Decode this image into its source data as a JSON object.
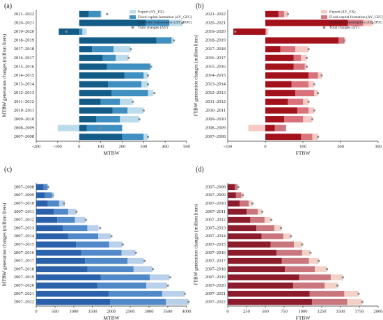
{
  "chart_data": [
    {
      "type": "bar",
      "label": "(a)",
      "xlabel": "MTBW",
      "ylabel": "MTBW generation changes (million liters)",
      "categories": [
        "2021–2022",
        "2020–2021",
        "2019–2020",
        "2018–2019",
        "2017–2018",
        "2016–2017",
        "2015–2016",
        "2014–2015",
        "2013–2014",
        "2012–2013",
        "2011–2012",
        "2010–2011",
        "2009–2010",
        "2008–2009",
        "2007–2008"
      ],
      "series": [
        {
          "name": "Export (ΔY_EX)",
          "color": "#bcdcec",
          "values": [
            5,
            60,
            20,
            10,
            80,
            60,
            5,
            20,
            30,
            25,
            60,
            75,
            90,
            -100,
            20
          ]
        },
        {
          "name": "Fixed capital formation (ΔY_GFC)",
          "color": "#3f8fc0",
          "values": [
            55,
            110,
            15,
            70,
            100,
            60,
            200,
            90,
            155,
            170,
            90,
            70,
            110,
            165,
            100
          ]
        },
        {
          "name": "Domestic consumption (ΔY_DOC)",
          "color": "#135c87",
          "values": [
            45,
            310,
            -95,
            360,
            60,
            110,
            130,
            210,
            135,
            150,
            100,
            155,
            80,
            35,
            200
          ]
        }
      ],
      "totals": {
        "name": "Total changes (ΔY)",
        "color": "#8a8a8a",
        "values": [
          130,
          480,
          -60,
          440,
          240,
          230,
          335,
          320,
          320,
          350,
          250,
          300,
          280,
          100,
          320
        ]
      },
      "xlim": [
        -200,
        500
      ],
      "xticks": [
        -200,
        -100,
        0,
        100,
        200,
        300,
        400,
        500
      ],
      "legend": "upper right"
    },
    {
      "type": "bar",
      "label": "(b)",
      "xlabel": "FTBW",
      "ylabel": "FTBW generation changes (million liters)",
      "categories": [
        "2021–2022",
        "2020–2021",
        "2019–2020",
        "2018–2019",
        "2017–2018",
        "2016–2017",
        "2015–2016",
        "2014–2015",
        "2013–2014",
        "2012–2013",
        "2011–2012",
        "2010–2011",
        "2009–2010",
        "2008–2009",
        "2007–2008"
      ],
      "series": [
        {
          "name": "Export (ΔY_EX)",
          "color": "#f6c9c4",
          "values": [
            10,
            25,
            5,
            3,
            35,
            15,
            5,
            10,
            15,
            10,
            15,
            15,
            25,
            -45,
            15
          ]
        },
        {
          "name": "Fixed capital formation (ΔY_GFC)",
          "color": "#d8727b",
          "values": [
            15,
            40,
            3,
            15,
            40,
            20,
            30,
            25,
            45,
            50,
            40,
            30,
            50,
            30,
            30
          ]
        },
        {
          "name": "Domestic consumption (ΔY_DOC)",
          "color": "#a3111b",
          "values": [
            35,
            220,
            -85,
            195,
            40,
            75,
            75,
            115,
            70,
            80,
            60,
            85,
            50,
            25,
            95
          ]
        }
      ],
      "totals": {
        "name": "Total changes (ΔY)",
        "color": "#8a8a8a",
        "values": [
          60,
          285,
          -80,
          210,
          115,
          110,
          110,
          150,
          130,
          140,
          115,
          130,
          125,
          40,
          140
        ]
      },
      "xlim": [
        -100,
        300
      ],
      "xticks": [
        -100,
        0,
        100,
        200,
        300
      ],
      "legend": "upper right"
    },
    {
      "type": "bar",
      "label": "(c)",
      "xlabel": "MTBW",
      "ylabel": "MTBW generation changes (million liters)",
      "categories": [
        "2007–2008",
        "2007–2009",
        "2007–2010",
        "2007–2011",
        "2007–2012",
        "2007–2013",
        "2007–2014",
        "2007–2015",
        "2007–2016",
        "2007–2017",
        "2007–2018",
        "2007–2019",
        "2007–2020",
        "2007–2021",
        "2007–2022"
      ],
      "series": [
        {
          "color": "#b9d0ea",
          "values": [
            20,
            60,
            150,
            220,
            280,
            300,
            330,
            350,
            370,
            430,
            500,
            520,
            550,
            600,
            600
          ]
        },
        {
          "color": "#5088c8",
          "values": [
            100,
            190,
            300,
            380,
            470,
            650,
            800,
            880,
            1070,
            1130,
            1230,
            1300,
            1310,
            1420,
            1480
          ]
        },
        {
          "color": "#2b60aa",
          "values": [
            200,
            230,
            310,
            470,
            560,
            710,
            850,
            1060,
            1200,
            1300,
            1360,
            1720,
            1620,
            1930,
            1970
          ]
        }
      ],
      "totals": {
        "color": "#8a8a8a",
        "values": [
          320,
          430,
          740,
          1070,
          1320,
          1700,
          2000,
          2300,
          2650,
          2880,
          3100,
          3560,
          3500,
          3950,
          4050
        ]
      },
      "xlim": [
        0,
        4000
      ],
      "xticks": [
        0,
        500,
        1000,
        1500,
        2000,
        2500,
        3000,
        3500,
        4000
      ]
    },
    {
      "type": "bar",
      "label": "(d)",
      "xlabel": "FTBW",
      "ylabel": "FTBW generation changes (million liters)",
      "categories": [
        "2007–2008",
        "2007–2009",
        "2007–2010",
        "2007–2011",
        "2007–2012",
        "2007–2013",
        "2007–2014",
        "2007–2015",
        "2007–2016",
        "2007–2017",
        "2007–2018",
        "2007–2019",
        "2007–2020",
        "2007–2021",
        "2007–2022"
      ],
      "series": [
        {
          "color": "#f2d2c6",
          "values": [
            15,
            30,
            50,
            60,
            80,
            90,
            100,
            110,
            110,
            130,
            160,
            160,
            170,
            190,
            200
          ]
        },
        {
          "color": "#c9767f",
          "values": [
            30,
            70,
            120,
            150,
            190,
            240,
            290,
            310,
            340,
            360,
            400,
            420,
            420,
            460,
            470
          ]
        },
        {
          "color": "#8c1b2c",
          "values": [
            95,
            110,
            160,
            250,
            300,
            380,
            450,
            570,
            650,
            720,
            760,
            950,
            870,
            1090,
            1120
          ]
        }
      ],
      "totals": {
        "color": "#8a8a8a",
        "values": [
          140,
          200,
          330,
          460,
          580,
          710,
          840,
          990,
          1100,
          1210,
          1320,
          1530,
          1460,
          1740,
          1790
        ]
      },
      "xlim": [
        0,
        2000
      ],
      "xticks": [
        0,
        250,
        500,
        750,
        1000,
        1250,
        1500,
        1750,
        2000
      ]
    }
  ]
}
